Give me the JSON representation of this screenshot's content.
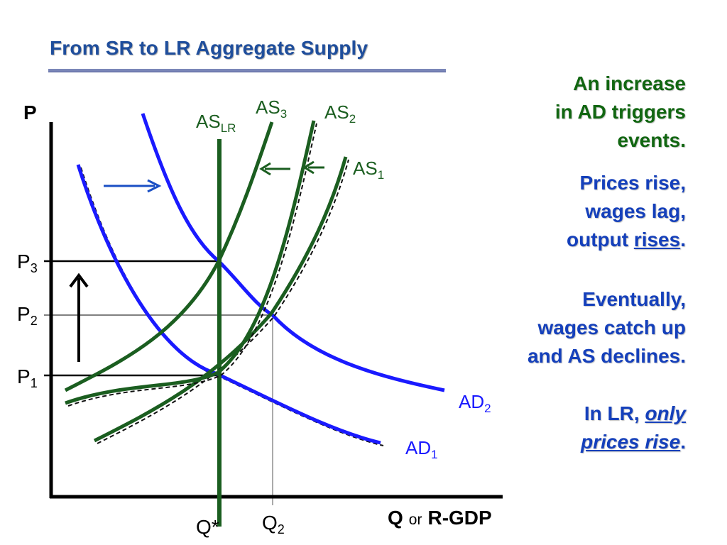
{
  "slide": {
    "title": "From SR to LR Aggregate Supply"
  },
  "diagram": {
    "y_axis_label": "P",
    "x_axis_label_q": "Q",
    "x_axis_label_or": "or",
    "x_axis_label_gdp": "R-GDP",
    "price_levels": [
      {
        "main": "P",
        "sub": "3"
      },
      {
        "main": "P",
        "sub": "2"
      },
      {
        "main": "P",
        "sub": "1"
      }
    ],
    "quantity_levels": [
      {
        "main": "Q*",
        "sub": ""
      },
      {
        "main": "Q",
        "sub": "2"
      }
    ],
    "curves": {
      "as_lr": {
        "main": "AS",
        "sub": "LR"
      },
      "as_1": {
        "main": "AS",
        "sub": "1"
      },
      "as_2": {
        "main": "AS",
        "sub": "2"
      },
      "as_3": {
        "main": "AS",
        "sub": "3"
      },
      "ad_1": {
        "main": "AD",
        "sub": "1"
      },
      "ad_2": {
        "main": "AD",
        "sub": "2"
      }
    },
    "colors": {
      "as_curves": "#1b5e20",
      "ad_curves": "#1a1aff",
      "axes": "#000000",
      "ad_shift_arrow": "#1a4fc4"
    }
  },
  "notes": {
    "intro": [
      "An increase",
      "in AD triggers",
      "events."
    ],
    "short_run": {
      "line1": "Prices rise,",
      "line2": "wages lag,",
      "line3_prefix": "output ",
      "line3_emph": "rises",
      "line3_suffix": "."
    },
    "adjustment": [
      "Eventually,",
      "wages catch up",
      "and AS declines."
    ],
    "long_run": {
      "line1_prefix": "In LR, ",
      "line1_emph": "only",
      "line2_emph": "prices rise",
      "line2_suffix": "."
    }
  }
}
